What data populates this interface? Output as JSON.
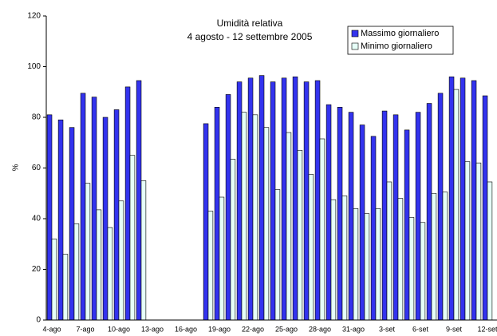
{
  "chart_data": {
    "type": "bar",
    "title": "Umidità relativa",
    "subtitle": "4 agosto - 12 settembre 2005",
    "y_label": "%",
    "categories": [
      "4-ago",
      null,
      null,
      "7-ago",
      null,
      null,
      "10-ago",
      null,
      null,
      "13-ago",
      null,
      null,
      "16-ago",
      null,
      null,
      "19-ago",
      null,
      null,
      "22-ago",
      null,
      null,
      "25-ago",
      null,
      null,
      "28-ago",
      null,
      null,
      "31-ago",
      null,
      null,
      "3-set",
      null,
      null,
      "6-set",
      null,
      null,
      "9-set",
      null,
      null,
      "12-set"
    ],
    "series": [
      {
        "name": "Massimo giornaliero",
        "color": "#3333ee",
        "values": [
          81,
          79,
          76,
          89.5,
          88,
          80,
          83,
          92,
          94.5,
          null,
          null,
          null,
          null,
          null,
          77.5,
          84,
          89,
          94,
          95.5,
          96.5,
          94,
          95.5,
          96,
          94,
          94.5,
          85,
          84,
          82,
          77,
          72.5,
          82.5,
          81,
          75,
          82,
          85.5,
          89.5,
          96,
          95.5,
          94.5,
          88.5
        ]
      },
      {
        "name": "Minimo giornaliero",
        "color": "#e6fff8",
        "values": [
          32,
          26,
          38,
          54,
          43.5,
          36.5,
          47,
          65,
          55,
          null,
          null,
          null,
          null,
          null,
          43,
          48.5,
          63.5,
          82,
          81,
          76,
          51.5,
          74,
          67,
          57.5,
          71.5,
          47.5,
          49,
          44,
          42,
          44,
          54.5,
          48,
          40.5,
          38.5,
          50,
          50.5,
          91,
          62.5,
          62,
          54.5
        ]
      }
    ],
    "ylim": [
      0,
      120
    ],
    "yticks": [
      0,
      20,
      40,
      60,
      80,
      100,
      120
    ],
    "grid": false,
    "legend": "top-right"
  }
}
